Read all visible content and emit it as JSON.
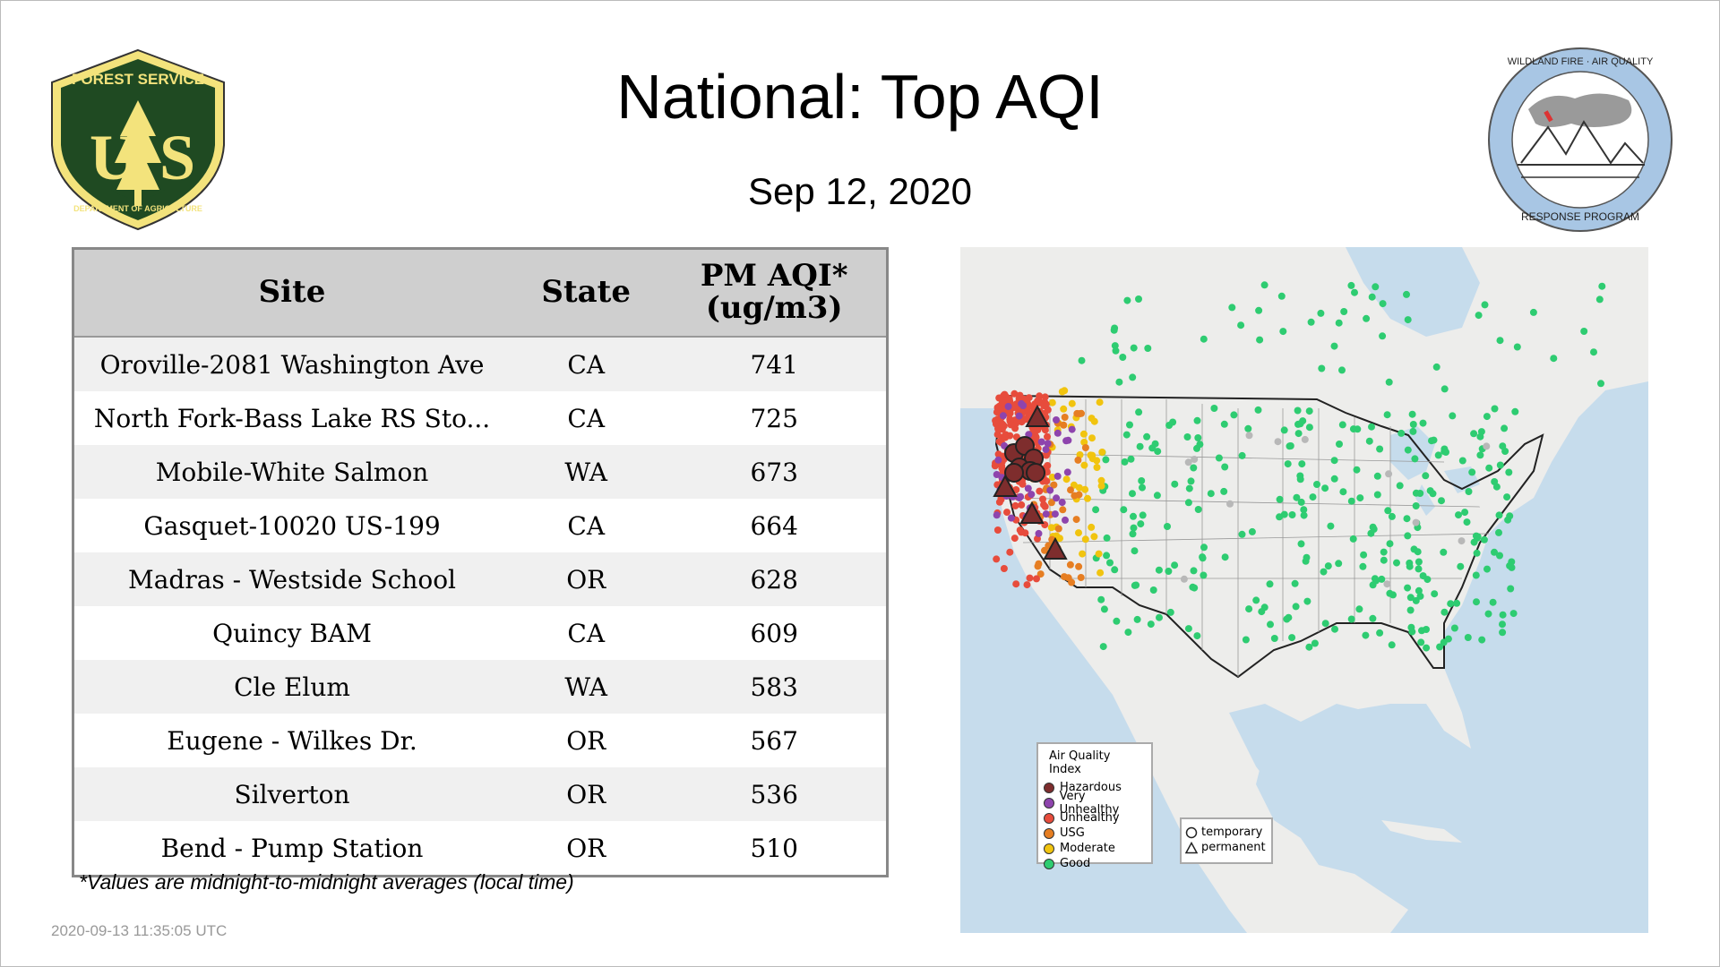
{
  "header": {
    "title": "National: Top AQI",
    "date": "Sep 12, 2020"
  },
  "logos": {
    "left": {
      "top_text": "FOREST SERVICE",
      "letters": "U S",
      "bottom_text": "DEPARTMENT OF AGRICULTURE",
      "icon": "forest-service-shield"
    },
    "right": {
      "ring_text_top": "WILDLAND FIRE · AIR QUALITY",
      "ring_text_bottom": "RESPONSE PROGRAM",
      "icon": "wildland-fire-seal"
    }
  },
  "table": {
    "headers": {
      "site": "Site",
      "state": "State",
      "value_line1": "PM AQI*",
      "value_line2": "(ug/m3)"
    },
    "rows": [
      {
        "site": "Oroville-2081 Washington Ave",
        "state": "CA",
        "value": "741"
      },
      {
        "site": "North Fork-Bass Lake RS Sto...",
        "state": "CA",
        "value": "725"
      },
      {
        "site": "Mobile-White Salmon",
        "state": "WA",
        "value": "673"
      },
      {
        "site": "Gasquet-10020 US-199",
        "state": "CA",
        "value": "664"
      },
      {
        "site": "Madras - Westside School",
        "state": "OR",
        "value": "628"
      },
      {
        "site": "Quincy BAM",
        "state": "CA",
        "value": "609"
      },
      {
        "site": "Cle Elum",
        "state": "WA",
        "value": "583"
      },
      {
        "site": "Eugene - Wilkes Dr.",
        "state": "OR",
        "value": "567"
      },
      {
        "site": "Silverton",
        "state": "OR",
        "value": "536"
      },
      {
        "site": "Bend - Pump Station",
        "state": "OR",
        "value": "510"
      }
    ]
  },
  "footnote": "*Values are midnight-to-midnight averages (local time)",
  "timestamp": "2020-09-13 11:35:05 UTC",
  "map": {
    "legend": {
      "title": "Air Quality Index",
      "items": [
        {
          "label": "Hazardous",
          "color": "#7e2d2d"
        },
        {
          "label": "Very Unhealthy",
          "color": "#8e44ad"
        },
        {
          "label": "Unhealthy",
          "color": "#e74c3c"
        },
        {
          "label": "USG",
          "color": "#e67e22"
        },
        {
          "label": "Moderate",
          "color": "#f1c40f"
        },
        {
          "label": "Good",
          "color": "#2ecc71"
        }
      ]
    },
    "shape_legend": {
      "items": [
        {
          "label": "temporary",
          "icon": "circle-outline-icon"
        },
        {
          "label": "permanent",
          "icon": "triangle-outline-icon"
        }
      ]
    },
    "colors": {
      "water": "#c6dcec",
      "land": "#ededeb",
      "unmonitored": "#b8b8b8"
    }
  }
}
